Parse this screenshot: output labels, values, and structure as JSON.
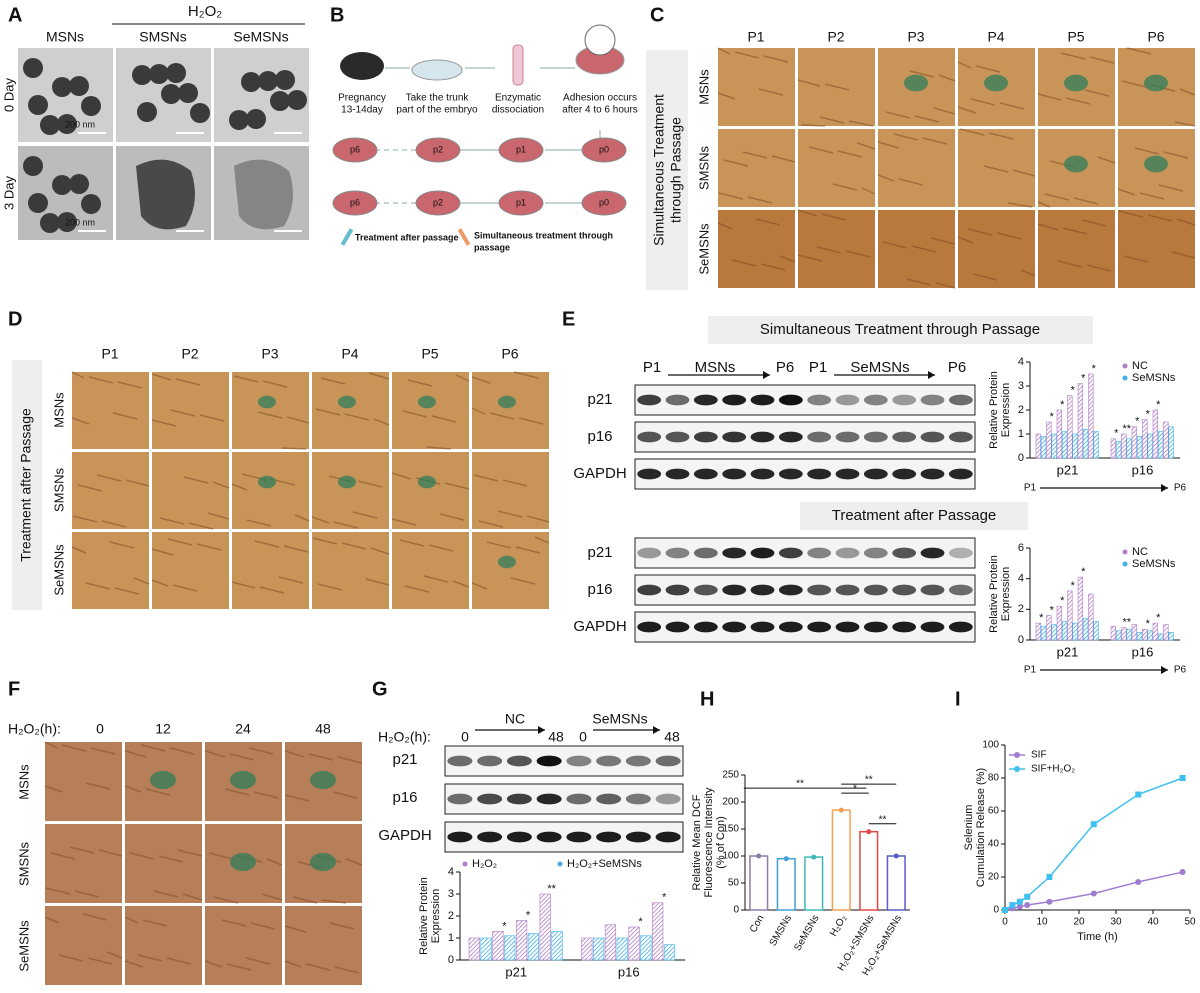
{
  "panel_a": {
    "label": "A",
    "treatment": "H₂O₂",
    "columns": [
      "MSNs",
      "SMSNs",
      "SeMSNs"
    ],
    "rows": [
      "0 Day",
      "3 Day"
    ],
    "scale_bars": [
      "200 nm",
      "200 nm"
    ]
  },
  "panel_b": {
    "label": "B",
    "steps": [
      [
        "Pregnancy",
        "13-14day"
      ],
      [
        "Take the trunk",
        "part of the embryo"
      ],
      [
        "Enzymatic",
        "dissociation"
      ],
      [
        "Adhesion occurs",
        "after 4 to 6 hours"
      ]
    ],
    "dishes": [
      [
        "p6",
        "p2",
        "p1",
        "p0"
      ],
      [
        "p6",
        "p2",
        "p1",
        "p0"
      ]
    ],
    "treatment_after": "Treatment after passage",
    "simultaneous": [
      "Simultaneous treatment through",
      "passage"
    ]
  },
  "panel_c": {
    "label": "C",
    "side_label": [
      "Simultaneous Treatment",
      "through Passage"
    ],
    "columns": [
      "P1",
      "P2",
      "P3",
      "P4",
      "P5",
      "P6"
    ],
    "rows": [
      "MSNs",
      "SMSNs",
      "SeMSNs"
    ]
  },
  "panel_d": {
    "label": "D",
    "side_label": "Treatment after Passage",
    "columns": [
      "P1",
      "P2",
      "P3",
      "P4",
      "P5",
      "P6"
    ],
    "rows": [
      "MSNs",
      "SMSNs",
      "SeMSNs"
    ]
  },
  "panel_e": {
    "label": "E",
    "top_title": "Simultaneous Treatment through Passage",
    "bottom_title": "Treatment after Passage",
    "top_markers": [
      "P1",
      "MSNs",
      "P6",
      "P1",
      "SeMSNs",
      "P6"
    ],
    "blot_rows": [
      "p21",
      "p16",
      "GAPDH"
    ]
  },
  "panel_f": {
    "label": "F",
    "time_label": "H₂O₂(h):",
    "times": [
      "0",
      "12",
      "24",
      "48"
    ],
    "rows": [
      "MSNs",
      "SMSNs",
      "SeMSNs"
    ]
  },
  "panel_g": {
    "label": "G",
    "time_label": "H₂O₂(h):",
    "markers": [
      "0",
      "NC",
      "48",
      "0",
      "SeMSNs",
      "48"
    ],
    "blot_rows": [
      "p21",
      "p16",
      "GAPDH"
    ]
  },
  "panel_h": {
    "label": "H"
  },
  "panel_i": {
    "label": "I"
  },
  "chart_data": [
    {
      "type": "grouped_bar",
      "ylabel": [
        "Relative Protein",
        "Expression"
      ],
      "groups": [
        "p21",
        "p16"
      ],
      "series": [
        {
          "name": "NC",
          "color": "#b07cc6",
          "values": [
            [
              1.0,
              1.5,
              2.0,
              2.6,
              3.1,
              3.5
            ],
            [
              0.8,
              1.0,
              1.3,
              1.6,
              2.0,
              1.5
            ]
          ]
        },
        {
          "name": "SeMSNs",
          "color": "#3fb0e6",
          "values": [
            [
              0.9,
              1.0,
              1.1,
              1.0,
              1.2,
              1.1
            ],
            [
              0.7,
              0.8,
              0.9,
              1.0,
              1.1,
              1.3
            ]
          ]
        }
      ],
      "ylim": [
        0,
        4
      ],
      "yticks": [
        0,
        1,
        2,
        3,
        4
      ],
      "significance": [
        [
          null,
          "*",
          "*",
          "*",
          "*",
          "*"
        ],
        [
          "*",
          "**",
          "*",
          "*",
          "*",
          null
        ]
      ],
      "x_range_labels": [
        "P1",
        "P6"
      ],
      "legend": "upper right"
    },
    {
      "type": "grouped_bar",
      "ylabel": [
        "Relative Protein",
        "Expression"
      ],
      "groups": [
        "p21",
        "p16"
      ],
      "series": [
        {
          "name": "NC",
          "color": "#b07cc6",
          "values": [
            [
              1.1,
              1.6,
              2.2,
              3.2,
              4.1,
              3.0
            ],
            [
              0.9,
              0.8,
              1.0,
              0.7,
              1.1,
              1.0
            ]
          ]
        },
        {
          "name": "SeMSNs",
          "color": "#3fb0e6",
          "values": [
            [
              0.9,
              1.0,
              1.2,
              1.1,
              1.4,
              1.2
            ],
            [
              0.6,
              0.7,
              0.5,
              0.6,
              0.4,
              0.5
            ]
          ]
        }
      ],
      "ylim": [
        0,
        6
      ],
      "yticks": [
        0,
        2,
        4,
        6
      ],
      "significance": [
        [
          "*",
          "*",
          "*",
          "*",
          "*",
          null
        ],
        [
          null,
          "**",
          null,
          "*",
          "*",
          null
        ]
      ],
      "x_range_labels": [
        "P1",
        "P6"
      ],
      "legend": "upper right"
    },
    {
      "type": "grouped_bar",
      "ylabel": [
        "Relative Protein",
        "Expression"
      ],
      "groups": [
        "p21",
        "p16"
      ],
      "series": [
        {
          "name": "H₂O₂",
          "color": "#b07cc6",
          "values": [
            [
              1.0,
              1.3,
              1.8,
              3.0
            ],
            [
              1.0,
              1.6,
              1.5,
              2.6
            ]
          ]
        },
        {
          "name": "H₂O₂+SeMSNs",
          "color": "#3fb0e6",
          "values": [
            [
              1.0,
              1.1,
              1.2,
              1.3
            ],
            [
              1.0,
              1.0,
              1.1,
              0.7
            ]
          ]
        }
      ],
      "ylim": [
        0,
        4
      ],
      "yticks": [
        0,
        1,
        2,
        3,
        4
      ],
      "significance": [
        [
          null,
          "*",
          "*",
          "**"
        ],
        [
          null,
          null,
          "*",
          "*"
        ]
      ],
      "legend": "top"
    },
    {
      "type": "bar",
      "ylabel": [
        "Relative Mean DCF",
        "Fluorescence Intensity",
        "(% of Con)"
      ],
      "categories": [
        "Con",
        "SMSNs",
        "SeMSNs",
        "H₂O₂",
        "H₂O₂+SMSNs",
        "H₂O₂+SeMSNs"
      ],
      "values": [
        100,
        95,
        98,
        185,
        145,
        100
      ],
      "colors": [
        "#8e7ba8",
        "#3fa0d8",
        "#3fb8b8",
        "#f0a050",
        "#e04848",
        "#5a5ac8"
      ],
      "ylim": [
        0,
        250
      ],
      "yticks": [
        0,
        50,
        100,
        150,
        200,
        250
      ],
      "brackets": [
        {
          "between": [
            0,
            3
          ],
          "label": "**"
        },
        {
          "between": [
            3,
            4
          ],
          "label": "*"
        },
        {
          "between": [
            3,
            5
          ],
          "label": "**"
        },
        {
          "between": [
            4,
            5
          ],
          "label": "**"
        }
      ]
    },
    {
      "type": "line",
      "xlabel": "Time (h)",
      "ylabel": [
        "Selenium",
        "Cumulation Release (%)"
      ],
      "x": [
        0,
        2,
        4,
        6,
        12,
        24,
        36,
        48
      ],
      "series": [
        {
          "name": "SIF",
          "color": "#a07cd0",
          "values": [
            0,
            1,
            2,
            3,
            5,
            10,
            17,
            23
          ]
        },
        {
          "name": "SIF+H₂O₂",
          "color": "#3fc0ee",
          "values": [
            0,
            3,
            5,
            8,
            20,
            52,
            70,
            80
          ]
        }
      ],
      "xlim": [
        0,
        50
      ],
      "xticks": [
        0,
        10,
        20,
        30,
        40,
        50
      ],
      "ylim": [
        0,
        100
      ],
      "yticks": [
        0,
        20,
        40,
        60,
        80,
        100
      ],
      "legend": "upper left"
    }
  ]
}
